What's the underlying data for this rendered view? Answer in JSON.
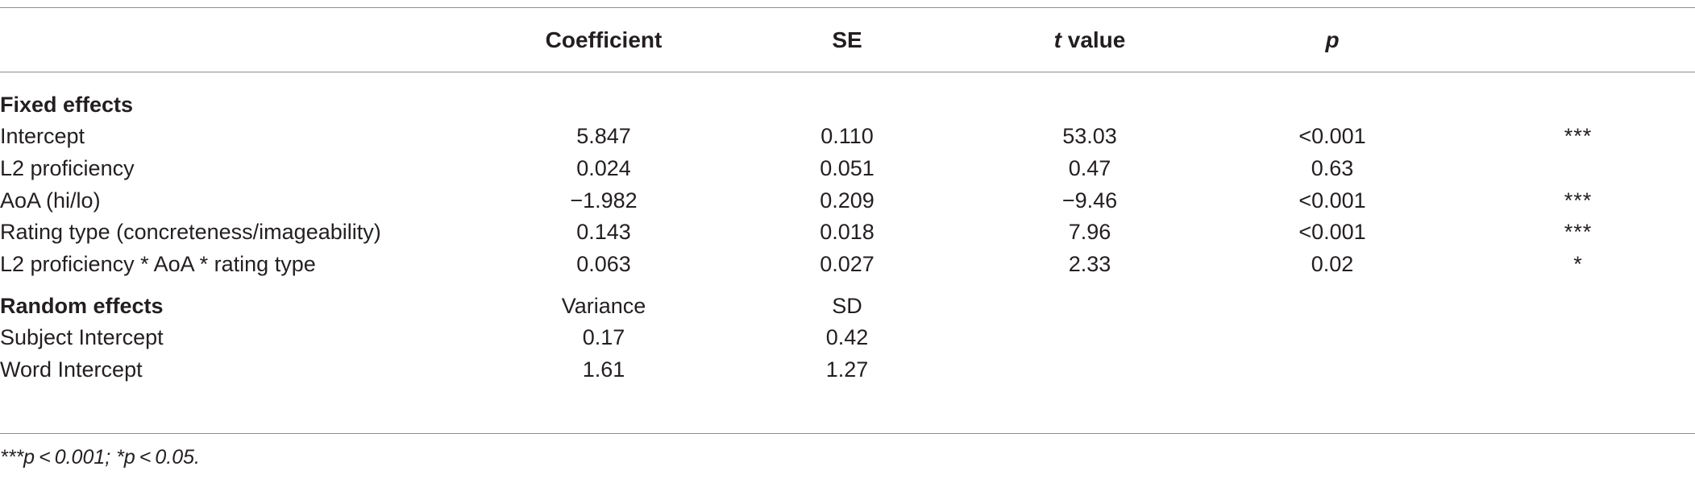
{
  "header": {
    "coefficient": "Coefficient",
    "se": "SE",
    "t_italic": "t",
    "t_rest": " value",
    "p": "p"
  },
  "fixed_effects": {
    "title": "Fixed effects",
    "rows": [
      {
        "label": "Intercept",
        "coef": "5.847",
        "se": "0.110",
        "t": "53.03",
        "p": "<0.001",
        "sig": "***"
      },
      {
        "label": "L2 proficiency",
        "coef": "0.024",
        "se": "0.051",
        "t": "0.47",
        "p": "0.63",
        "sig": ""
      },
      {
        "label": "AoA (hi/lo)",
        "coef": "−1.982",
        "se": "0.209",
        "t": "−9.46",
        "p": "<0.001",
        "sig": "***"
      },
      {
        "label": "Rating type (concreteness/imageability)",
        "coef": "0.143",
        "se": "0.018",
        "t": "7.96",
        "p": "<0.001",
        "sig": "***"
      },
      {
        "label": "L2 proficiency * AoA * rating type",
        "coef": "0.063",
        "se": "0.027",
        "t": "2.33",
        "p": "0.02",
        "sig": "*"
      }
    ]
  },
  "random_effects": {
    "title": "Random effects",
    "col1": "Variance",
    "col2": "SD",
    "rows": [
      {
        "label": "Subject Intercept",
        "variance": "0.17",
        "sd": "0.42"
      },
      {
        "label": "Word Intercept",
        "variance": "1.61",
        "sd": "1.27"
      }
    ]
  },
  "footnote": "***p < 0.001; *p < 0.05."
}
